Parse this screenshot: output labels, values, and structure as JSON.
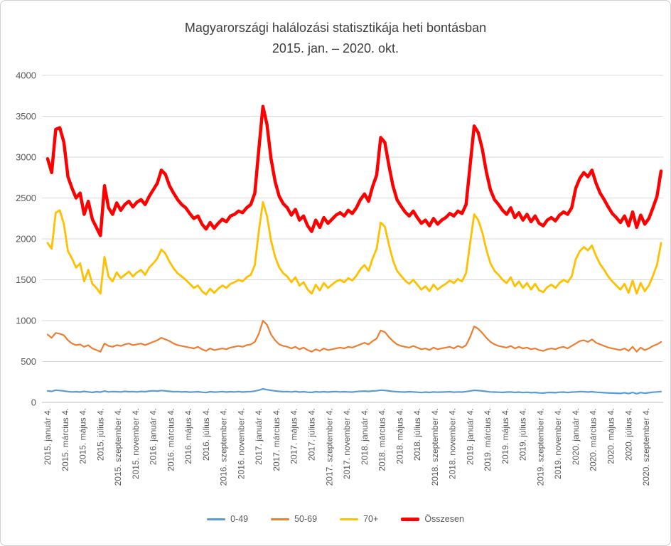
{
  "chart_data": {
    "type": "line",
    "title": "Magyarországi halálozási statisztikája heti bontásban",
    "subtitle": "2015. jan. – 2020. okt.",
    "ylim": [
      0,
      4000
    ],
    "y_ticks": [
      0,
      500,
      1000,
      1500,
      2000,
      2500,
      3000,
      3500,
      4000
    ],
    "grid": true,
    "legend_position": "bottom",
    "points_per_year": 26,
    "x_tick_interval_months": 2,
    "x_tick_labels": [
      "2015. január 4.",
      "2015. március 4.",
      "2015. május 4.",
      "2015. július 4.",
      "2015. szeptember 4.",
      "2015. november 4.",
      "2016. január 4.",
      "2016. március 4.",
      "2016. május 4.",
      "2016. július 4.",
      "2016. szeptember 4.",
      "2016. november 4.",
      "2017. január 4.",
      "2017. március 4.",
      "2017. május 4.",
      "2017. július 4.",
      "2017. szeptember 4.",
      "2017. november 4.",
      "2018. január 4.",
      "2018. március 4.",
      "2018. május 4.",
      "2018. július 4.",
      "2018. szeptember 4.",
      "2018. november 4.",
      "2019. január 4.",
      "2019. március 4.",
      "2019. május 4.",
      "2019. július 4.",
      "2019. szeptember 4.",
      "2019. november 4.",
      "2020. január 4.",
      "2020. március 4.",
      "2020. május 4.",
      "2020. július 4.",
      "2020. szeptember 4."
    ],
    "series": [
      {
        "name": "0-49",
        "color": "#5B9BD5",
        "width": 2.2,
        "values": [
          140,
          135,
          150,
          145,
          140,
          132,
          128,
          130,
          126,
          135,
          128,
          122,
          130,
          125,
          138,
          128,
          132,
          130,
          128,
          135,
          130,
          132,
          128,
          134,
          130,
          138,
          142,
          138,
          145,
          140,
          135,
          130,
          132,
          128,
          130,
          125,
          128,
          130,
          124,
          120,
          130,
          126,
          128,
          132,
          126,
          130,
          128,
          132,
          126,
          130,
          132,
          138,
          150,
          165,
          155,
          148,
          140,
          135,
          130,
          132,
          128,
          134,
          126,
          130,
          124,
          122,
          130,
          126,
          130,
          126,
          130,
          132,
          128,
          130,
          128,
          126,
          132,
          136,
          138,
          134,
          140,
          142,
          150,
          146,
          140,
          134,
          130,
          128,
          126,
          130,
          128,
          124,
          120,
          126,
          122,
          128,
          124,
          126,
          128,
          130,
          124,
          128,
          126,
          132,
          140,
          148,
          144,
          140,
          134,
          128,
          126,
          124,
          122,
          126,
          128,
          122,
          126,
          120,
          124,
          118,
          122,
          116,
          114,
          120,
          122,
          118,
          124,
          126,
          120,
          126,
          128,
          132,
          130,
          126,
          130,
          124,
          122,
          118,
          116,
          114,
          112,
          110,
          118,
          108,
          122,
          106,
          120,
          112,
          118,
          124,
          128,
          132
        ]
      },
      {
        "name": "50-69",
        "color": "#ED7D31",
        "width": 2.2,
        "values": [
          830,
          790,
          850,
          840,
          820,
          760,
          720,
          700,
          710,
          680,
          700,
          660,
          640,
          620,
          720,
          690,
          680,
          700,
          690,
          710,
          720,
          700,
          710,
          720,
          700,
          720,
          740,
          760,
          790,
          770,
          750,
          720,
          700,
          690,
          680,
          670,
          660,
          680,
          650,
          630,
          660,
          640,
          650,
          660,
          650,
          670,
          680,
          690,
          680,
          700,
          710,
          740,
          840,
          1000,
          950,
          830,
          760,
          710,
          690,
          680,
          660,
          680,
          650,
          670,
          640,
          620,
          650,
          630,
          660,
          640,
          650,
          660,
          670,
          660,
          680,
          670,
          690,
          710,
          730,
          710,
          750,
          780,
          880,
          860,
          800,
          750,
          710,
          690,
          680,
          670,
          690,
          670,
          650,
          660,
          640,
          670,
          650,
          660,
          670,
          680,
          660,
          690,
          670,
          700,
          800,
          930,
          900,
          850,
          790,
          740,
          710,
          690,
          680,
          670,
          690,
          660,
          680,
          660,
          670,
          650,
          660,
          640,
          630,
          650,
          660,
          650,
          670,
          680,
          660,
          690,
          720,
          750,
          760,
          740,
          770,
          730,
          710,
          690,
          670,
          660,
          650,
          640,
          660,
          630,
          680,
          620,
          670,
          640,
          660,
          690,
          710,
          740
        ]
      },
      {
        "name": "70+",
        "color": "#FFC000",
        "width": 2.8,
        "values": [
          1950,
          1880,
          2320,
          2350,
          2180,
          1850,
          1760,
          1650,
          1700,
          1480,
          1620,
          1450,
          1400,
          1330,
          1780,
          1540,
          1480,
          1590,
          1520,
          1560,
          1600,
          1540,
          1590,
          1620,
          1560,
          1650,
          1700,
          1760,
          1870,
          1820,
          1720,
          1640,
          1580,
          1540,
          1500,
          1450,
          1400,
          1430,
          1360,
          1320,
          1390,
          1340,
          1390,
          1430,
          1400,
          1450,
          1470,
          1500,
          1480,
          1530,
          1560,
          1680,
          2100,
          2450,
          2280,
          1980,
          1780,
          1650,
          1580,
          1540,
          1470,
          1530,
          1430,
          1470,
          1380,
          1330,
          1440,
          1370,
          1460,
          1400,
          1440,
          1480,
          1500,
          1470,
          1520,
          1490,
          1550,
          1630,
          1680,
          1610,
          1760,
          1880,
          2200,
          2150,
          1930,
          1740,
          1610,
          1550,
          1490,
          1450,
          1500,
          1440,
          1380,
          1420,
          1360,
          1440,
          1380,
          1420,
          1450,
          1490,
          1460,
          1510,
          1480,
          1580,
          1950,
          2300,
          2230,
          2080,
          1870,
          1700,
          1610,
          1560,
          1500,
          1460,
          1530,
          1420,
          1480,
          1400,
          1460,
          1380,
          1450,
          1370,
          1350,
          1410,
          1440,
          1400,
          1460,
          1500,
          1470,
          1540,
          1750,
          1850,
          1900,
          1860,
          1920,
          1790,
          1690,
          1620,
          1540,
          1480,
          1430,
          1380,
          1450,
          1340,
          1490,
          1330,
          1460,
          1360,
          1430,
          1550,
          1680,
          1950
        ]
      },
      {
        "name": "Összesen",
        "color": "#FF0000",
        "width": 4.5,
        "values": [
          2980,
          2810,
          3340,
          3360,
          3180,
          2760,
          2620,
          2500,
          2560,
          2300,
          2460,
          2240,
          2140,
          2040,
          2650,
          2380,
          2300,
          2440,
          2350,
          2420,
          2460,
          2390,
          2450,
          2480,
          2420,
          2520,
          2600,
          2680,
          2840,
          2790,
          2650,
          2560,
          2480,
          2420,
          2380,
          2310,
          2250,
          2280,
          2180,
          2120,
          2200,
          2130,
          2190,
          2240,
          2210,
          2280,
          2300,
          2340,
          2320,
          2380,
          2420,
          2560,
          3100,
          3620,
          3400,
          2980,
          2700,
          2520,
          2430,
          2380,
          2290,
          2360,
          2230,
          2280,
          2160,
          2090,
          2230,
          2140,
          2260,
          2190,
          2240,
          2290,
          2320,
          2280,
          2350,
          2310,
          2380,
          2480,
          2550,
          2460,
          2640,
          2780,
          3240,
          3180,
          2900,
          2650,
          2480,
          2400,
          2330,
          2280,
          2340,
          2260,
          2190,
          2230,
          2160,
          2250,
          2180,
          2230,
          2260,
          2310,
          2280,
          2340,
          2310,
          2420,
          2900,
          3380,
          3300,
          3100,
          2820,
          2600,
          2480,
          2420,
          2350,
          2300,
          2380,
          2260,
          2320,
          2230,
          2300,
          2210,
          2280,
          2190,
          2160,
          2230,
          2260,
          2220,
          2290,
          2330,
          2300,
          2380,
          2620,
          2740,
          2810,
          2760,
          2840,
          2680,
          2560,
          2480,
          2390,
          2310,
          2260,
          2200,
          2280,
          2160,
          2330,
          2140,
          2290,
          2180,
          2250,
          2380,
          2520,
          2830
        ]
      }
    ]
  }
}
